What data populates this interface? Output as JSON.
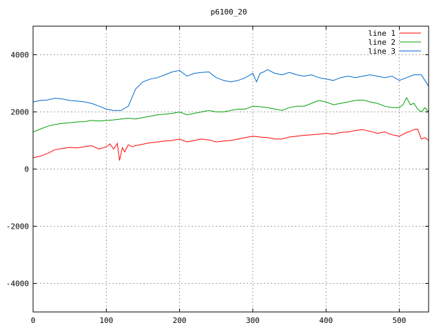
{
  "chart_data": {
    "type": "line",
    "title": "p6100_20",
    "xlabel": "",
    "ylabel": "",
    "xlim": [
      0,
      540
    ],
    "ylim": [
      -5000,
      5000
    ],
    "x_ticks": [
      0,
      100,
      200,
      300,
      400,
      500
    ],
    "y_ticks": [
      -4000,
      -2000,
      0,
      2000,
      4000
    ],
    "grid": true,
    "legend_position": "top-right",
    "series": [
      {
        "name": "line 1",
        "color": "#ff0000",
        "x": [
          0,
          10,
          20,
          30,
          40,
          50,
          60,
          70,
          80,
          90,
          100,
          105,
          110,
          115,
          118,
          122,
          125,
          130,
          135,
          140,
          150,
          160,
          170,
          180,
          190,
          200,
          210,
          220,
          230,
          240,
          250,
          260,
          270,
          280,
          290,
          300,
          310,
          320,
          330,
          340,
          350,
          360,
          370,
          380,
          390,
          400,
          410,
          420,
          430,
          440,
          450,
          460,
          470,
          480,
          490,
          500,
          510,
          515,
          520,
          525,
          530,
          535,
          540
        ],
        "y": [
          400,
          450,
          550,
          680,
          720,
          760,
          740,
          780,
          820,
          700,
          780,
          880,
          700,
          900,
          300,
          750,
          600,
          850,
          780,
          820,
          870,
          920,
          950,
          980,
          1000,
          1050,
          950,
          1000,
          1050,
          1020,
          950,
          980,
          1000,
          1050,
          1100,
          1150,
          1120,
          1100,
          1050,
          1050,
          1120,
          1150,
          1180,
          1200,
          1220,
          1250,
          1220,
          1280,
          1300,
          1350,
          1380,
          1320,
          1250,
          1300,
          1200,
          1150,
          1280,
          1320,
          1380,
          1400,
          1050,
          1100,
          1000
        ]
      },
      {
        "name": "line 2",
        "color": "#00a000",
        "x": [
          0,
          10,
          20,
          30,
          40,
          50,
          60,
          70,
          80,
          90,
          100,
          110,
          120,
          130,
          140,
          150,
          160,
          170,
          180,
          190,
          200,
          210,
          220,
          230,
          240,
          250,
          260,
          270,
          280,
          290,
          300,
          310,
          320,
          330,
          340,
          350,
          360,
          370,
          380,
          390,
          400,
          410,
          420,
          430,
          440,
          450,
          460,
          470,
          480,
          490,
          500,
          505,
          510,
          515,
          520,
          525,
          530,
          535,
          540
        ],
        "y": [
          1300,
          1400,
          1500,
          1560,
          1600,
          1620,
          1650,
          1660,
          1700,
          1680,
          1700,
          1720,
          1750,
          1780,
          1750,
          1800,
          1850,
          1900,
          1920,
          1950,
          2000,
          1900,
          1950,
          2000,
          2050,
          2000,
          2000,
          2050,
          2100,
          2100,
          2200,
          2180,
          2150,
          2100,
          2050,
          2150,
          2200,
          2200,
          2300,
          2400,
          2350,
          2250,
          2300,
          2350,
          2400,
          2420,
          2350,
          2300,
          2200,
          2150,
          2150,
          2250,
          2500,
          2250,
          2300,
          2100,
          2000,
          2150,
          2000
        ]
      },
      {
        "name": "line 3",
        "color": "#0066cc",
        "x": [
          0,
          10,
          20,
          30,
          40,
          50,
          60,
          70,
          80,
          90,
          100,
          110,
          120,
          130,
          140,
          150,
          160,
          170,
          180,
          190,
          200,
          210,
          220,
          230,
          240,
          250,
          260,
          270,
          280,
          290,
          300,
          305,
          310,
          315,
          320,
          330,
          340,
          350,
          360,
          370,
          380,
          390,
          400,
          410,
          420,
          430,
          440,
          450,
          460,
          470,
          480,
          490,
          500,
          510,
          520,
          530,
          535,
          540
        ],
        "y": [
          2350,
          2400,
          2420,
          2480,
          2450,
          2400,
          2380,
          2350,
          2300,
          2200,
          2100,
          2050,
          2050,
          2200,
          2800,
          3050,
          3150,
          3200,
          3300,
          3400,
          3450,
          3250,
          3350,
          3380,
          3400,
          3200,
          3100,
          3050,
          3100,
          3200,
          3350,
          3050,
          3350,
          3400,
          3480,
          3350,
          3300,
          3380,
          3300,
          3250,
          3300,
          3200,
          3150,
          3100,
          3200,
          3250,
          3200,
          3250,
          3300,
          3250,
          3200,
          3250,
          3100,
          3200,
          3300,
          3300,
          3100,
          2900
        ]
      }
    ]
  }
}
